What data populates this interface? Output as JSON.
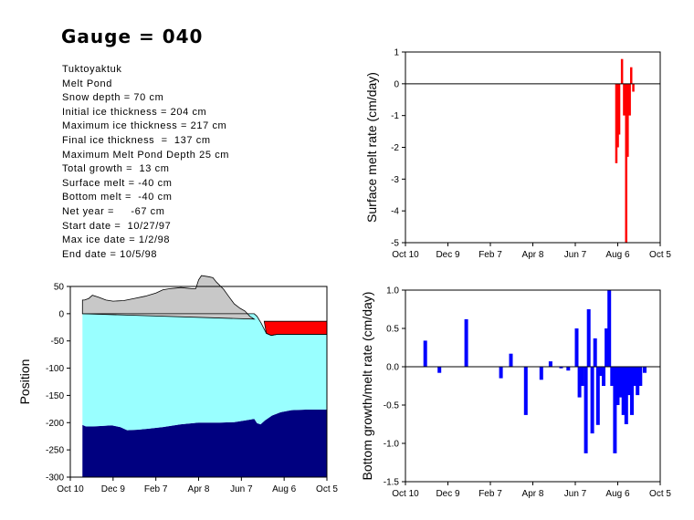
{
  "header": {
    "title": "Gauge = 040",
    "info_lines": [
      "Tuktoyaktuk",
      "Melt Pond",
      "Snow depth = 70 cm",
      "Initial ice thickness = 204 cm",
      "Maximum ice thickness = 217 cm",
      "Final ice thickness  =  137 cm",
      "Maximum Melt Pond Depth 25 cm",
      "Total growth =  13 cm",
      "Surface melt = -40 cm",
      "Bottom melt =  -40 cm",
      "Net year =     -67 cm",
      "Start date =  10/27/97",
      "Max ice date = 1/2/98",
      "End date = 10/5/98"
    ]
  },
  "chart_data": [
    {
      "id": "position",
      "type": "area",
      "ylabel": "Position",
      "xlabel": "",
      "x_ticks": [
        "Oct 10",
        "Dec 9",
        "Feb 7",
        "Apr 8",
        "Jun 7",
        "Aug 6",
        "Oct 5"
      ],
      "y_ticks": [
        "50",
        "0",
        "-50",
        "-100",
        "-150",
        "-200",
        "-250",
        "-300"
      ],
      "xlim": [
        0,
        360
      ],
      "ylim": [
        -300,
        50
      ],
      "colors": {
        "snow": "#c8c8c8",
        "ice": "#99ffff",
        "water": "#000080",
        "pond": "#ff0000"
      },
      "snow_surface": [
        [
          17,
          25
        ],
        [
          20,
          25
        ],
        [
          26,
          28
        ],
        [
          31,
          34
        ],
        [
          40,
          30
        ],
        [
          50,
          25
        ],
        [
          60,
          23
        ],
        [
          75,
          24
        ],
        [
          90,
          28
        ],
        [
          105,
          32
        ],
        [
          120,
          38
        ],
        [
          130,
          44
        ],
        [
          140,
          46
        ],
        [
          148,
          47
        ],
        [
          155,
          48
        ],
        [
          163,
          47
        ],
        [
          170,
          46
        ],
        [
          176,
          46
        ],
        [
          180,
          62
        ],
        [
          184,
          70
        ],
        [
          194,
          68
        ],
        [
          200,
          66
        ],
        [
          205,
          58
        ],
        [
          215,
          45
        ],
        [
          222,
          32
        ],
        [
          230,
          18
        ],
        [
          238,
          10
        ],
        [
          245,
          5
        ],
        [
          252,
          -5
        ],
        [
          258,
          -10
        ]
      ],
      "ice_top": [
        [
          17,
          0
        ],
        [
          258,
          0
        ],
        [
          262,
          -5
        ],
        [
          268,
          -18
        ],
        [
          275,
          -36
        ],
        [
          282,
          -40
        ],
        [
          290,
          -38
        ],
        [
          300,
          -38
        ],
        [
          325,
          -38
        ],
        [
          360,
          -38
        ]
      ],
      "ice_bottom": [
        [
          17,
          -204
        ],
        [
          22,
          -207
        ],
        [
          30,
          -207
        ],
        [
          45,
          -206
        ],
        [
          58,
          -205
        ],
        [
          70,
          -208
        ],
        [
          80,
          -214
        ],
        [
          95,
          -213
        ],
        [
          110,
          -211
        ],
        [
          130,
          -208
        ],
        [
          155,
          -203
        ],
        [
          180,
          -200
        ],
        [
          210,
          -200
        ],
        [
          230,
          -199
        ],
        [
          250,
          -195
        ],
        [
          258,
          -193
        ],
        [
          262,
          -201
        ],
        [
          267,
          -203
        ],
        [
          273,
          -196
        ],
        [
          283,
          -187
        ],
        [
          295,
          -181
        ],
        [
          310,
          -177
        ],
        [
          330,
          -176
        ],
        [
          360,
          -176
        ]
      ],
      "pond_top": [
        [
          272,
          -14
        ],
        [
          285,
          -14
        ],
        [
          300,
          -14
        ],
        [
          330,
          -14
        ],
        [
          360,
          -14
        ]
      ]
    },
    {
      "id": "surface-melt",
      "type": "bar",
      "ylabel": "Surface melt rate (cm/day)",
      "xlabel": "",
      "x_ticks": [
        "Oct 10",
        "Dec 9",
        "Feb 7",
        "Apr 8",
        "Jun 7",
        "Aug 6",
        "Oct 5"
      ],
      "y_ticks": [
        "1",
        "0",
        "-1",
        "-2",
        "-3",
        "-4",
        "-5"
      ],
      "xlim": [
        0,
        360
      ],
      "ylim": [
        -5,
        1
      ],
      "color": "#ff0000",
      "x": [
        298,
        300,
        302,
        306,
        309,
        312,
        314,
        317,
        319,
        322
      ],
      "values": [
        -2.5,
        -2.0,
        -1.6,
        0.78,
        -1.0,
        -5.0,
        -2.3,
        -1.0,
        0.52,
        -0.25
      ]
    },
    {
      "id": "bottom-melt",
      "type": "bar",
      "ylabel": "Bottom growth/melt rate (cm/day)",
      "xlabel": "",
      "x_ticks": [
        "Oct 10",
        "Dec 9",
        "Feb 7",
        "Apr 8",
        "Jun 7",
        "Aug 6",
        "Oct 5"
      ],
      "y_ticks": [
        "1.0",
        "0.5",
        "0.0",
        "-0.5",
        "-1.0",
        "-1.5"
      ],
      "xlim": [
        0,
        360
      ],
      "ylim": [
        -1.5,
        1.0
      ],
      "color": "#0000ff",
      "x": [
        28,
        48,
        86,
        135,
        149,
        170,
        192,
        205,
        220,
        230,
        242,
        246,
        250,
        255,
        259,
        264,
        268,
        272,
        276,
        280,
        284,
        288,
        292,
        296,
        300,
        304,
        308,
        312,
        316,
        320,
        324,
        328,
        332,
        338
      ],
      "values": [
        0.34,
        -0.08,
        0.62,
        -0.15,
        0.17,
        -0.63,
        -0.17,
        0.07,
        -0.02,
        -0.05,
        0.5,
        -0.4,
        -0.25,
        -1.13,
        0.75,
        -0.87,
        0.37,
        -0.76,
        -0.12,
        -0.25,
        0.5,
        1.0,
        -0.25,
        -1.13,
        -0.5,
        -0.4,
        -0.63,
        -0.75,
        -0.37,
        -0.63,
        -0.25,
        -0.37,
        -0.25,
        -0.08
      ]
    }
  ]
}
